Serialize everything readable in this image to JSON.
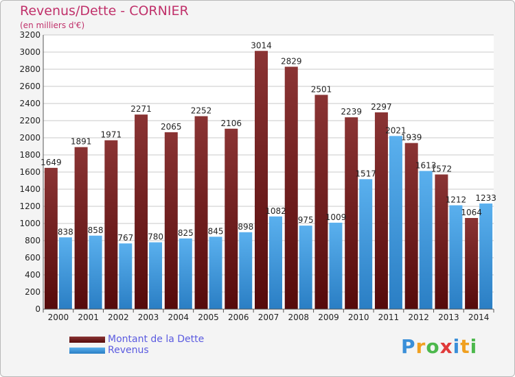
{
  "header": {
    "title": "Revenus/Dette - CORNIER",
    "subtitle": "(en milliers d'€)"
  },
  "logo": {
    "letters": [
      "P",
      "r",
      "o",
      "x",
      "i",
      "t",
      "i"
    ],
    "colors": [
      "#3a8fd8",
      "#f0a020",
      "#4cb84c",
      "#e03a3a",
      "#3a8fd8",
      "#f0a020",
      "#4cb84c"
    ]
  },
  "colors": {
    "debt": "#7a1e1e",
    "revenue": "#4aa0e0"
  },
  "chart_data": {
    "type": "bar",
    "categories": [
      "2000",
      "2001",
      "2002",
      "2003",
      "2004",
      "2005",
      "2006",
      "2007",
      "2008",
      "2009",
      "2010",
      "2011",
      "2012",
      "2013",
      "2014"
    ],
    "series": [
      {
        "name": "Montant de la Dette",
        "values": [
          1649,
          1891,
          1971,
          2271,
          2065,
          2252,
          2106,
          3014,
          2829,
          2501,
          2239,
          2297,
          1939,
          1572,
          1064
        ]
      },
      {
        "name": "Revenus",
        "values": [
          838,
          858,
          767,
          780,
          825,
          845,
          898,
          1082,
          975,
          1009,
          1517,
          2021,
          1613,
          1212,
          1233
        ]
      }
    ],
    "ylim": [
      0,
      3200
    ],
    "yticks": [
      0,
      200,
      400,
      600,
      800,
      1000,
      1200,
      1400,
      1600,
      1800,
      2000,
      2200,
      2400,
      2600,
      2800,
      3000,
      3200
    ],
    "grid": true,
    "legend": "bottom-left"
  }
}
